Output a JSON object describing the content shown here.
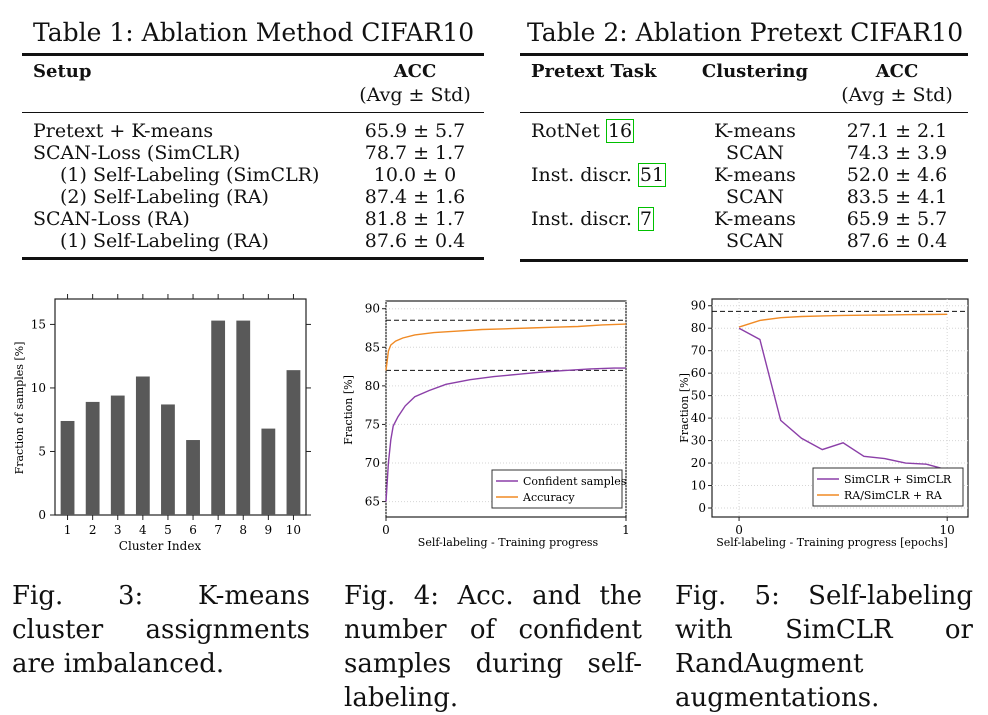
{
  "table1": {
    "title": "Table 1: Ablation Method CIFAR10",
    "headers": {
      "setup": "Setup",
      "acc": "ACC",
      "acc_sub": "(Avg ± Std)"
    },
    "rows": [
      {
        "label": "Pretext + K-means",
        "acc": "65.9 ± 5.7"
      },
      {
        "label": "SCAN-Loss (SimCLR)",
        "acc": "78.7 ± 1.7"
      },
      {
        "label": "(1) Self-Labeling (SimCLR)",
        "acc": "10.0 ± 0"
      },
      {
        "label": "(2) Self-Labeling (RA)",
        "acc": "87.4 ± 1.6"
      },
      {
        "label": "SCAN-Loss (RA)",
        "acc": "81.8 ± 1.7"
      },
      {
        "label": "(1) Self-Labeling (RA)",
        "acc": "87.6 ± 0.4"
      }
    ]
  },
  "table2": {
    "title": "Table 2: Ablation Pretext CIFAR10",
    "headers": {
      "task": "Pretext Task",
      "clustering": "Clustering",
      "acc": "ACC",
      "acc_sub": "(Avg ± Std)"
    },
    "rows": [
      {
        "task": "RotNet",
        "ref": "16",
        "clustering": "K-means",
        "acc": "27.1 ± 2.1"
      },
      {
        "task": "",
        "ref": "",
        "clustering": "SCAN",
        "acc": "74.3 ± 3.9"
      },
      {
        "task": "Inst. discr.",
        "ref": "51",
        "clustering": "K-means",
        "acc": "52.0 ± 4.6"
      },
      {
        "task": "",
        "ref": "",
        "clustering": "SCAN",
        "acc": "83.5 ± 4.1"
      },
      {
        "task": "Inst. discr.",
        "ref": "7",
        "clustering": "K-means",
        "acc": "65.9 ± 5.7"
      },
      {
        "task": "",
        "ref": "",
        "clustering": "SCAN",
        "acc": "87.6 ± 0.4"
      }
    ]
  },
  "fig3": {
    "caption": "Fig. 3: K-means cluster assignments are imbalanced."
  },
  "fig4": {
    "caption": "Fig. 4: Acc. and the number of confident samples during self-labeling."
  },
  "fig5": {
    "caption": "Fig. 5: Self-labeling with SimCLR or RandAugment augmentations."
  },
  "chart_data": [
    {
      "type": "bar",
      "xlabel": "Cluster Index",
      "ylabel": "Fraction of samples [%]",
      "categories": [
        "1",
        "2",
        "3",
        "4",
        "5",
        "6",
        "7",
        "8",
        "9",
        "10"
      ],
      "values": [
        7.4,
        8.9,
        9.4,
        10.9,
        8.7,
        5.9,
        15.3,
        15.3,
        6.8,
        11.4
      ],
      "ylim": [
        0,
        17
      ],
      "yticks": [
        0,
        5,
        10,
        15
      ],
      "color": "#595959"
    },
    {
      "type": "line",
      "xlabel": "Self-labeling - Training progress",
      "ylabel": "Fraction [%]",
      "xlim": [
        0,
        1
      ],
      "ylim": [
        63,
        91
      ],
      "xticks": [
        0,
        1
      ],
      "yticks": [
        65,
        70,
        75,
        80,
        85,
        90
      ],
      "reference_lines": [
        88.5,
        82
      ],
      "legend_position": "bottom-right",
      "series": [
        {
          "name": "Confident samples",
          "color": "#8b3fa8",
          "x": [
            0,
            0.01,
            0.02,
            0.03,
            0.05,
            0.08,
            0.12,
            0.18,
            0.25,
            0.35,
            0.45,
            0.55,
            0.65,
            0.75,
            0.85,
            0.95,
            1.0
          ],
          "y": [
            65,
            70,
            73,
            74.8,
            76,
            77.4,
            78.6,
            79.4,
            80.2,
            80.8,
            81.2,
            81.5,
            81.8,
            82,
            82.2,
            82.3,
            82.3
          ]
        },
        {
          "name": "Accuracy",
          "color": "#f08a24",
          "x": [
            0,
            0.01,
            0.02,
            0.04,
            0.07,
            0.12,
            0.2,
            0.3,
            0.4,
            0.5,
            0.6,
            0.7,
            0.8,
            0.9,
            1.0
          ],
          "y": [
            82,
            84.5,
            85.3,
            85.8,
            86.2,
            86.6,
            86.9,
            87.1,
            87.3,
            87.4,
            87.5,
            87.6,
            87.7,
            87.9,
            88
          ]
        }
      ]
    },
    {
      "type": "line",
      "xlabel": "Self-labeling - Training progress [epochs]",
      "ylabel": "Fraction [%]",
      "xlim": [
        -1.3,
        11
      ],
      "ylim": [
        -4,
        93
      ],
      "xticks": [
        0,
        10
      ],
      "yticks": [
        0,
        10,
        20,
        30,
        40,
        50,
        60,
        70,
        80,
        90
      ],
      "reference_lines": [
        87.5
      ],
      "legend_position": "bottom-right",
      "series": [
        {
          "name": "SimCLR + SimCLR",
          "color": "#8b3fa8",
          "x": [
            0,
            1,
            2,
            3,
            4,
            5,
            6,
            7,
            8,
            9,
            10
          ],
          "y": [
            80,
            75,
            39,
            31,
            26,
            29,
            23,
            22,
            20,
            19.5,
            17
          ]
        },
        {
          "name": "RA/SimCLR + RA",
          "color": "#f08a24",
          "x": [
            0,
            1,
            2,
            3,
            4,
            5,
            6,
            7,
            8,
            9,
            10
          ],
          "y": [
            80.5,
            83.5,
            84.7,
            85.2,
            85.5,
            85.7,
            85.8,
            85.9,
            86,
            86.1,
            86.2
          ]
        }
      ]
    }
  ]
}
